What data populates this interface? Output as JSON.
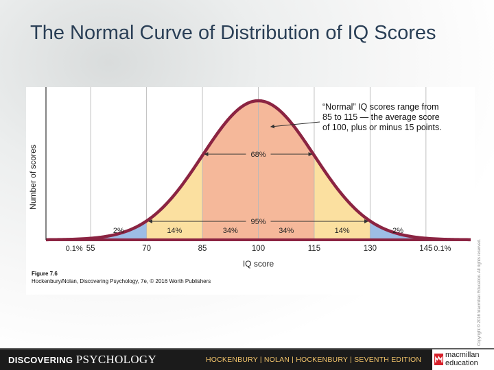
{
  "slide": {
    "title": "The Normal Curve of Distribution of IQ Scores",
    "figure_label": "Figure 7.6",
    "figure_credit": "Hockenbury/Nolan, Discovering Psychology, 7e, © 2016 Worth Publishers",
    "copyright": "Copyright © 2016 Macmillan Education. All rights reserved."
  },
  "footer": {
    "brand_bold": "DISCOVERING",
    "brand_serif": "PSYCHOLOGY",
    "authors": "HOCKENBURY | NOLAN | HOCKENBURY | SEVENTH EDITION",
    "publisher_line1": "macmillan",
    "publisher_line2": "education"
  },
  "colors": {
    "curve": "#8b2442",
    "band_68": "#f5b89a",
    "band_95": "#fbe0a0",
    "band_99": "#9dbde6",
    "band_tail": "#9ecc9c",
    "grid": "#b9b9b9",
    "footer_bg": "#1b1b1b",
    "footer_text": "#f2c46b",
    "title": "#2a3f56"
  },
  "chart_data": {
    "type": "area",
    "xlabel": "IQ score",
    "ylabel": "Number of scores",
    "mean": 100,
    "sd": 15,
    "xlim": [
      43,
      157
    ],
    "x_ticks": [
      55,
      70,
      85,
      100,
      115,
      130,
      145
    ],
    "bands": [
      {
        "from": 43,
        "to": 55,
        "label": "0.1%"
      },
      {
        "from": 55,
        "to": 70,
        "label": "2%"
      },
      {
        "from": 70,
        "to": 85,
        "label": "14%"
      },
      {
        "from": 85,
        "to": 100,
        "label": "34%"
      },
      {
        "from": 100,
        "to": 115,
        "label": "34%"
      },
      {
        "from": 115,
        "to": 130,
        "label": "14%"
      },
      {
        "from": 130,
        "to": 145,
        "label": "2%"
      },
      {
        "from": 145,
        "to": 157,
        "label": "0.1%"
      }
    ],
    "spans": [
      {
        "from": 85,
        "to": 115,
        "label": "68%"
      },
      {
        "from": 70,
        "to": 130,
        "label": "95%"
      }
    ],
    "annotation": {
      "lines": [
        "“Normal” IQ scores range from",
        "85 to 115 — the average score",
        "of 100, plus or minus 15 points."
      ],
      "points_to_x": 100
    }
  }
}
